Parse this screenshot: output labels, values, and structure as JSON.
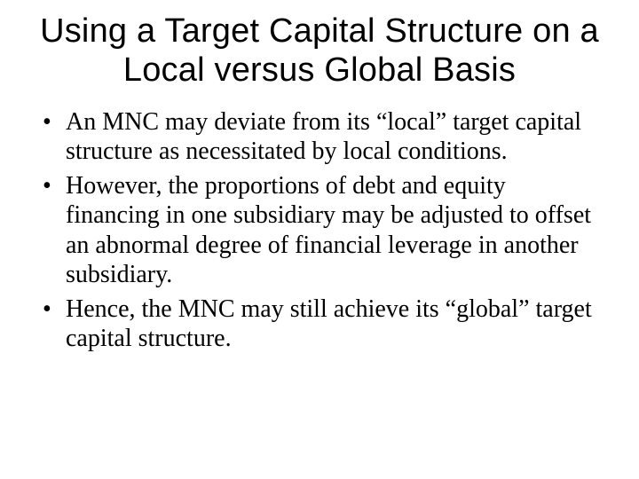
{
  "title": "Using a Target Capital Structure on a Local versus Global Basis",
  "bullets": [
    "An MNC may deviate from its “local” target capital structure as necessitated by local conditions.",
    "However, the proportions of debt and equity financing in one subsidiary may be adjusted to offset an abnormal degree of financial leverage in another subsidiary.",
    "Hence, the MNC may still achieve its “global” target capital structure."
  ],
  "colors": {
    "background": "#ffffff",
    "text": "#000000"
  },
  "fonts": {
    "title_family": "Arial",
    "body_family": "Times New Roman",
    "title_size_pt": 38,
    "body_size_pt": 28
  }
}
